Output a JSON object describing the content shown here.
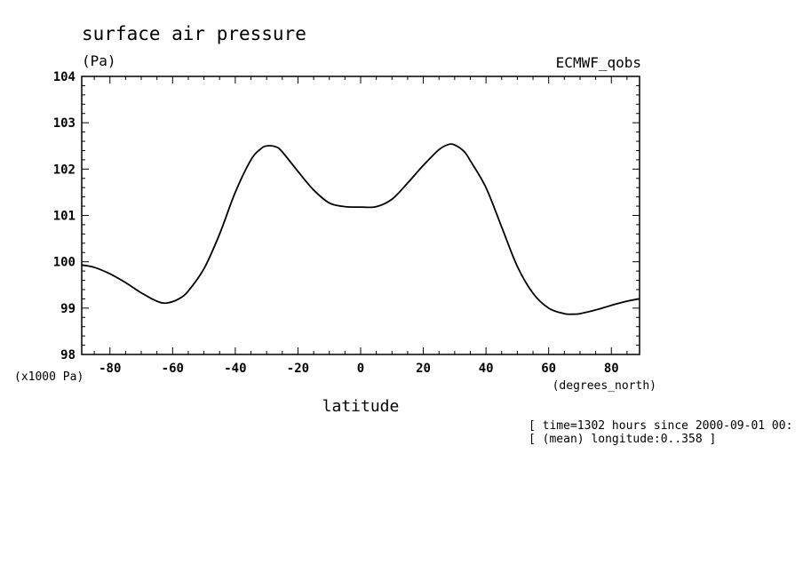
{
  "chart_data": {
    "type": "line",
    "title": "surface air pressure",
    "units": "(Pa)",
    "dataset": "ECMWF_qobs",
    "ylabel_scale": "(x1000 Pa)",
    "xunits": "(degrees_north)",
    "xlabel": "latitude",
    "notes": [
      "[ time=1302 hours since 2000-09-01 00:",
      "[ (mean) longitude:0..358 ]"
    ],
    "xlim": [
      -89,
      89
    ],
    "ylim": [
      98,
      104
    ],
    "xticks": [
      -80,
      -60,
      -40,
      -20,
      0,
      20,
      40,
      60,
      80
    ],
    "xtick_labels": [
      "-80",
      "-60",
      "-40",
      "-20",
      "0",
      "20",
      "40",
      "60",
      "80"
    ],
    "yticks": [
      98,
      99,
      100,
      101,
      102,
      103,
      104
    ],
    "ytick_labels": [
      "98",
      "99",
      "100",
      "101",
      "102",
      "103",
      "104"
    ],
    "grid": false,
    "series": [
      {
        "x": [
          -89,
          -85,
          -80,
          -75,
          -70,
          -65,
          -62,
          -58,
          -55,
          -50,
          -45,
          -40,
          -35,
          -32,
          -30,
          -27,
          -25,
          -20,
          -15,
          -10,
          -5,
          0,
          5,
          10,
          15,
          20,
          25,
          28,
          30,
          33,
          35,
          40,
          45,
          50,
          55,
          60,
          65,
          68,
          70,
          75,
          80,
          85,
          89
        ],
        "y": [
          99.93,
          99.88,
          99.74,
          99.55,
          99.33,
          99.15,
          99.11,
          99.2,
          99.37,
          99.85,
          100.6,
          101.5,
          102.2,
          102.43,
          102.5,
          102.48,
          102.37,
          101.95,
          101.55,
          101.27,
          101.19,
          101.18,
          101.19,
          101.35,
          101.7,
          102.08,
          102.42,
          102.53,
          102.52,
          102.38,
          102.18,
          101.6,
          100.75,
          99.9,
          99.32,
          99.0,
          98.88,
          98.87,
          98.88,
          98.96,
          99.06,
          99.15,
          99.2
        ]
      }
    ]
  }
}
